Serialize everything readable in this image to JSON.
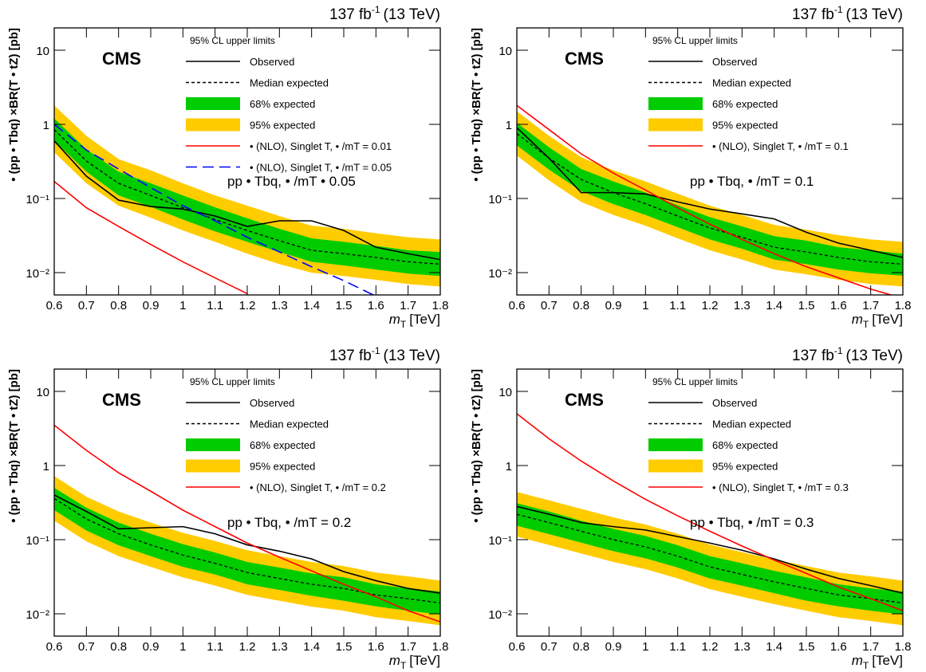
{
  "chart_data": [
    {
      "type": "line",
      "lumi": "137 fb",
      "lumi_sup": "-1",
      "energy": "(13 TeV)",
      "experiment": "CMS",
      "legend_title": "95% CL upper limits",
      "ylabel": "• (pp •  Tbq) ×BR(T •  tZ) [pb]",
      "xlabel": "m",
      "xlabel_sub": "T",
      "xlabel_unit": "[TeV]",
      "annotation": "pp •  Tbq, • /mT • 0.05",
      "log_y": true,
      "x": [
        0.6,
        0.7,
        0.8,
        0.9,
        1.0,
        1.1,
        1.2,
        1.3,
        1.4,
        1.5,
        1.6,
        1.7,
        1.8
      ],
      "xlim": [
        0.6,
        1.8
      ],
      "xticks": [
        0.6,
        0.7,
        0.8,
        0.9,
        1,
        1.1,
        1.2,
        1.3,
        1.4,
        1.5,
        1.6,
        1.7,
        1.8
      ],
      "ylim": [
        0.005,
        20
      ],
      "yticks": [
        {
          "value": 0.01,
          "label": "10⁻²"
        },
        {
          "value": 0.1,
          "label": "10⁻¹"
        },
        1,
        10
      ],
      "series": [
        {
          "name": "Observed",
          "style": "solid",
          "color": "#000000",
          "values": [
            0.6,
            0.2,
            0.095,
            0.078,
            0.072,
            0.058,
            0.042,
            0.05,
            0.05,
            0.037,
            0.022,
            0.018,
            0.015
          ]
        },
        {
          "name": "Median expected",
          "style": "dashed",
          "color": "#000000",
          "values": [
            0.85,
            0.32,
            0.16,
            0.11,
            0.075,
            0.052,
            0.037,
            0.027,
            0.02,
            0.018,
            0.016,
            0.014,
            0.013
          ]
        },
        {
          "name": "68% expected",
          "style": "band",
          "color": "#00cc00",
          "low": [
            0.6,
            0.23,
            0.11,
            0.077,
            0.052,
            0.036,
            0.026,
            0.019,
            0.014,
            0.0125,
            0.011,
            0.0097,
            0.009
          ],
          "high": [
            1.2,
            0.46,
            0.23,
            0.16,
            0.11,
            0.076,
            0.054,
            0.039,
            0.029,
            0.026,
            0.023,
            0.02,
            0.019
          ]
        },
        {
          "name": "95% expected",
          "style": "band",
          "color": "#ffcc00",
          "low": [
            0.42,
            0.16,
            0.08,
            0.055,
            0.037,
            0.026,
            0.018,
            0.013,
            0.01,
            0.009,
            0.008,
            0.007,
            0.0065
          ],
          "high": [
            1.8,
            0.7,
            0.34,
            0.24,
            0.16,
            0.11,
            0.08,
            0.058,
            0.043,
            0.039,
            0.034,
            0.03,
            0.028
          ]
        },
        {
          "name": "• (NLO), Singlet T, • /mT = 0.01",
          "style": "solid",
          "color": "#ff0000",
          "values": [
            0.17,
            0.075,
            0.042,
            0.024,
            0.014,
            0.0085,
            0.0052,
            null,
            null,
            null,
            null,
            null,
            null
          ]
        },
        {
          "name": "• (NLO), Singlet T, • /mT = 0.05",
          "style": "longdash",
          "color": "#0000ff",
          "values": [
            1.0,
            0.45,
            0.25,
            0.14,
            0.08,
            0.05,
            0.03,
            0.019,
            0.012,
            0.0078,
            0.0048,
            null,
            null
          ]
        }
      ]
    },
    {
      "type": "line",
      "lumi": "137 fb",
      "lumi_sup": "-1",
      "energy": "(13 TeV)",
      "experiment": "CMS",
      "legend_title": "95% CL upper limits",
      "ylabel": "• (pp •  Tbq) ×BR(T •  tZ) [pb]",
      "xlabel": "m",
      "xlabel_sub": "T",
      "xlabel_unit": "[TeV]",
      "annotation": "pp •  Tbq, • /mT = 0.1",
      "log_y": true,
      "x": [
        0.6,
        0.7,
        0.8,
        0.9,
        1.0,
        1.1,
        1.2,
        1.3,
        1.4,
        1.5,
        1.6,
        1.7,
        1.8
      ],
      "xlim": [
        0.6,
        1.8
      ],
      "xticks": [
        0.6,
        0.7,
        0.8,
        0.9,
        1,
        1.1,
        1.2,
        1.3,
        1.4,
        1.5,
        1.6,
        1.7,
        1.8
      ],
      "ylim": [
        0.005,
        20
      ],
      "yticks": [
        {
          "value": 0.01,
          "label": "10⁻²"
        },
        {
          "value": 0.1,
          "label": "10⁻¹"
        },
        1,
        10
      ],
      "series": [
        {
          "name": "Observed",
          "style": "solid",
          "color": "#000000",
          "values": [
            0.9,
            0.35,
            0.12,
            0.12,
            0.115,
            0.09,
            0.072,
            0.062,
            0.053,
            0.035,
            0.025,
            0.02,
            0.016
          ]
        },
        {
          "name": "Median expected",
          "style": "dashed",
          "color": "#000000",
          "values": [
            0.75,
            0.35,
            0.18,
            0.12,
            0.085,
            0.058,
            0.04,
            0.03,
            0.022,
            0.019,
            0.016,
            0.014,
            0.013
          ]
        },
        {
          "name": "68% expected",
          "style": "band",
          "color": "#00cc00",
          "low": [
            0.52,
            0.245,
            0.126,
            0.084,
            0.06,
            0.041,
            0.028,
            0.021,
            0.015,
            0.013,
            0.011,
            0.0098,
            0.0091
          ],
          "high": [
            1.05,
            0.49,
            0.25,
            0.17,
            0.12,
            0.081,
            0.056,
            0.042,
            0.031,
            0.027,
            0.022,
            0.02,
            0.018
          ]
        },
        {
          "name": "95% expected",
          "style": "band",
          "color": "#ffcc00",
          "low": [
            0.38,
            0.175,
            0.09,
            0.06,
            0.043,
            0.029,
            0.02,
            0.015,
            0.011,
            0.0095,
            0.008,
            0.007,
            0.0065
          ],
          "high": [
            1.5,
            0.7,
            0.36,
            0.24,
            0.17,
            0.116,
            0.08,
            0.06,
            0.044,
            0.038,
            0.032,
            0.028,
            0.026
          ]
        },
        {
          "name": "• (NLO), Singlet T, • /mT = 0.1",
          "style": "solid",
          "color": "#ff0000",
          "values": [
            1.8,
            0.85,
            0.4,
            0.22,
            0.13,
            0.075,
            0.045,
            0.028,
            0.018,
            0.012,
            0.0085,
            0.006,
            0.0045
          ]
        }
      ]
    },
    {
      "type": "line",
      "lumi": "137 fb",
      "lumi_sup": "-1",
      "energy": "(13 TeV)",
      "experiment": "CMS",
      "legend_title": "95% CL upper limits",
      "ylabel": "• (pp •  Tbq) ×BR(T •  tZ) [pb]",
      "xlabel": "m",
      "xlabel_sub": "T",
      "xlabel_unit": "[TeV]",
      "annotation": "pp •  Tbq, • /mT = 0.2",
      "log_y": true,
      "x": [
        0.6,
        0.7,
        0.8,
        0.9,
        1.0,
        1.1,
        1.2,
        1.3,
        1.4,
        1.5,
        1.6,
        1.7,
        1.8
      ],
      "xlim": [
        0.6,
        1.8
      ],
      "xticks": [
        0.6,
        0.7,
        0.8,
        0.9,
        1,
        1.1,
        1.2,
        1.3,
        1.4,
        1.5,
        1.6,
        1.7,
        1.8
      ],
      "ylim": [
        0.005,
        20
      ],
      "yticks": [
        {
          "value": 0.01,
          "label": "10⁻²"
        },
        {
          "value": 0.1,
          "label": "10⁻¹"
        },
        1,
        10
      ],
      "series": [
        {
          "name": "Observed",
          "style": "solid",
          "color": "#000000",
          "values": [
            0.4,
            0.24,
            0.14,
            0.145,
            0.15,
            0.12,
            0.085,
            0.07,
            0.055,
            0.037,
            0.028,
            0.022,
            0.019
          ]
        },
        {
          "name": "Median expected",
          "style": "dashed",
          "color": "#000000",
          "values": [
            0.36,
            0.19,
            0.12,
            0.085,
            0.062,
            0.048,
            0.036,
            0.03,
            0.025,
            0.022,
            0.018,
            0.016,
            0.014
          ]
        },
        {
          "name": "68% expected",
          "style": "band",
          "color": "#00cc00",
          "low": [
            0.25,
            0.133,
            0.084,
            0.06,
            0.043,
            0.034,
            0.025,
            0.021,
            0.0175,
            0.015,
            0.0126,
            0.011,
            0.0098
          ],
          "high": [
            0.5,
            0.27,
            0.17,
            0.12,
            0.087,
            0.067,
            0.05,
            0.042,
            0.035,
            0.031,
            0.025,
            0.022,
            0.02
          ]
        },
        {
          "name": "95% expected",
          "style": "band",
          "color": "#ffcc00",
          "low": [
            0.18,
            0.095,
            0.06,
            0.043,
            0.031,
            0.024,
            0.018,
            0.015,
            0.0125,
            0.011,
            0.009,
            0.008,
            0.007
          ],
          "high": [
            0.72,
            0.38,
            0.24,
            0.17,
            0.124,
            0.096,
            0.072,
            0.06,
            0.05,
            0.044,
            0.036,
            0.032,
            0.028
          ]
        },
        {
          "name": "• (NLO), Singlet T, • /mT = 0.2",
          "style": "solid",
          "color": "#ff0000",
          "values": [
            3.5,
            1.6,
            0.8,
            0.45,
            0.25,
            0.15,
            0.09,
            0.058,
            0.038,
            0.025,
            0.017,
            0.011,
            0.0078
          ]
        }
      ]
    },
    {
      "type": "line",
      "lumi": "137 fb",
      "lumi_sup": "-1",
      "energy": "(13 TeV)",
      "experiment": "CMS",
      "legend_title": "95% CL upper limits",
      "ylabel": "• (pp •  Tbq) ×BR(T •  tZ) [pb]",
      "xlabel": "m",
      "xlabel_sub": "T",
      "xlabel_unit": "[TeV]",
      "annotation": "pp •  Tbq, • /mT = 0.3",
      "log_y": true,
      "x": [
        0.6,
        0.7,
        0.8,
        0.9,
        1.0,
        1.1,
        1.2,
        1.3,
        1.4,
        1.5,
        1.6,
        1.7,
        1.8
      ],
      "xlim": [
        0.6,
        1.8
      ],
      "xticks": [
        0.6,
        0.7,
        0.8,
        0.9,
        1,
        1.1,
        1.2,
        1.3,
        1.4,
        1.5,
        1.6,
        1.7,
        1.8
      ],
      "ylim": [
        0.005,
        20
      ],
      "yticks": [
        {
          "value": 0.01,
          "label": "10⁻²"
        },
        {
          "value": 0.1,
          "label": "10⁻¹"
        },
        1,
        10
      ],
      "series": [
        {
          "name": "Observed",
          "style": "solid",
          "color": "#000000",
          "values": [
            0.28,
            0.22,
            0.17,
            0.15,
            0.135,
            0.11,
            0.09,
            0.072,
            0.055,
            0.04,
            0.03,
            0.024,
            0.019
          ]
        },
        {
          "name": "Median expected",
          "style": "dashed",
          "color": "#000000",
          "values": [
            0.22,
            0.17,
            0.13,
            0.1,
            0.08,
            0.06,
            0.043,
            0.034,
            0.027,
            0.022,
            0.018,
            0.016,
            0.014
          ]
        },
        {
          "name": "68% expected",
          "style": "band",
          "color": "#00cc00",
          "low": [
            0.154,
            0.119,
            0.091,
            0.07,
            0.056,
            0.042,
            0.03,
            0.024,
            0.019,
            0.015,
            0.0126,
            0.011,
            0.0098
          ],
          "high": [
            0.31,
            0.24,
            0.18,
            0.14,
            0.112,
            0.084,
            0.06,
            0.048,
            0.038,
            0.031,
            0.025,
            0.022,
            0.02
          ]
        },
        {
          "name": "95% expected",
          "style": "band",
          "color": "#ffcc00",
          "low": [
            0.11,
            0.085,
            0.065,
            0.05,
            0.04,
            0.03,
            0.0215,
            0.017,
            0.0135,
            0.011,
            0.009,
            0.008,
            0.007
          ],
          "high": [
            0.44,
            0.34,
            0.26,
            0.2,
            0.16,
            0.12,
            0.086,
            0.068,
            0.054,
            0.044,
            0.036,
            0.032,
            0.028
          ]
        },
        {
          "name": "• (NLO), Singlet T, • /mT = 0.3",
          "style": "solid",
          "color": "#ff0000",
          "values": [
            5,
            2.3,
            1.15,
            0.62,
            0.35,
            0.21,
            0.13,
            0.082,
            0.053,
            0.035,
            0.023,
            0.016,
            0.011
          ]
        }
      ]
    }
  ]
}
